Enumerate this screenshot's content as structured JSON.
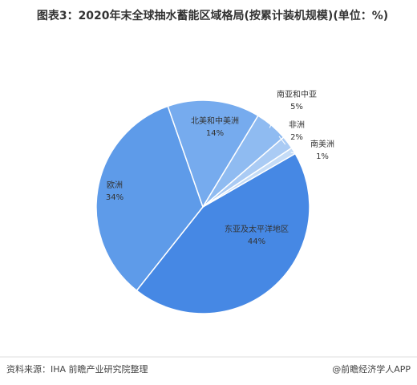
{
  "chart_data": {
    "type": "pie",
    "title": "图表3：2020年末全球抽水蓄能区域格局(按累计装机规模)(单位：%)",
    "categories": [
      "东亚及太平洋地区",
      "欧洲",
      "北美和中美洲",
      "南亚和中亚",
      "非洲",
      "南美洲"
    ],
    "values": [
      44,
      34,
      14,
      5,
      2,
      1
    ],
    "value_labels": [
      "44%",
      "34%",
      "14%",
      "5%",
      "2%",
      "1%"
    ],
    "colors": [
      "#4688e4",
      "#5e9be9",
      "#76abee",
      "#8fbbf1",
      "#aacbf4",
      "#c5dcf7"
    ],
    "source": "资料来源：IHA 前瞻产业研究院整理",
    "credit": "@前瞻经济学人APP"
  }
}
